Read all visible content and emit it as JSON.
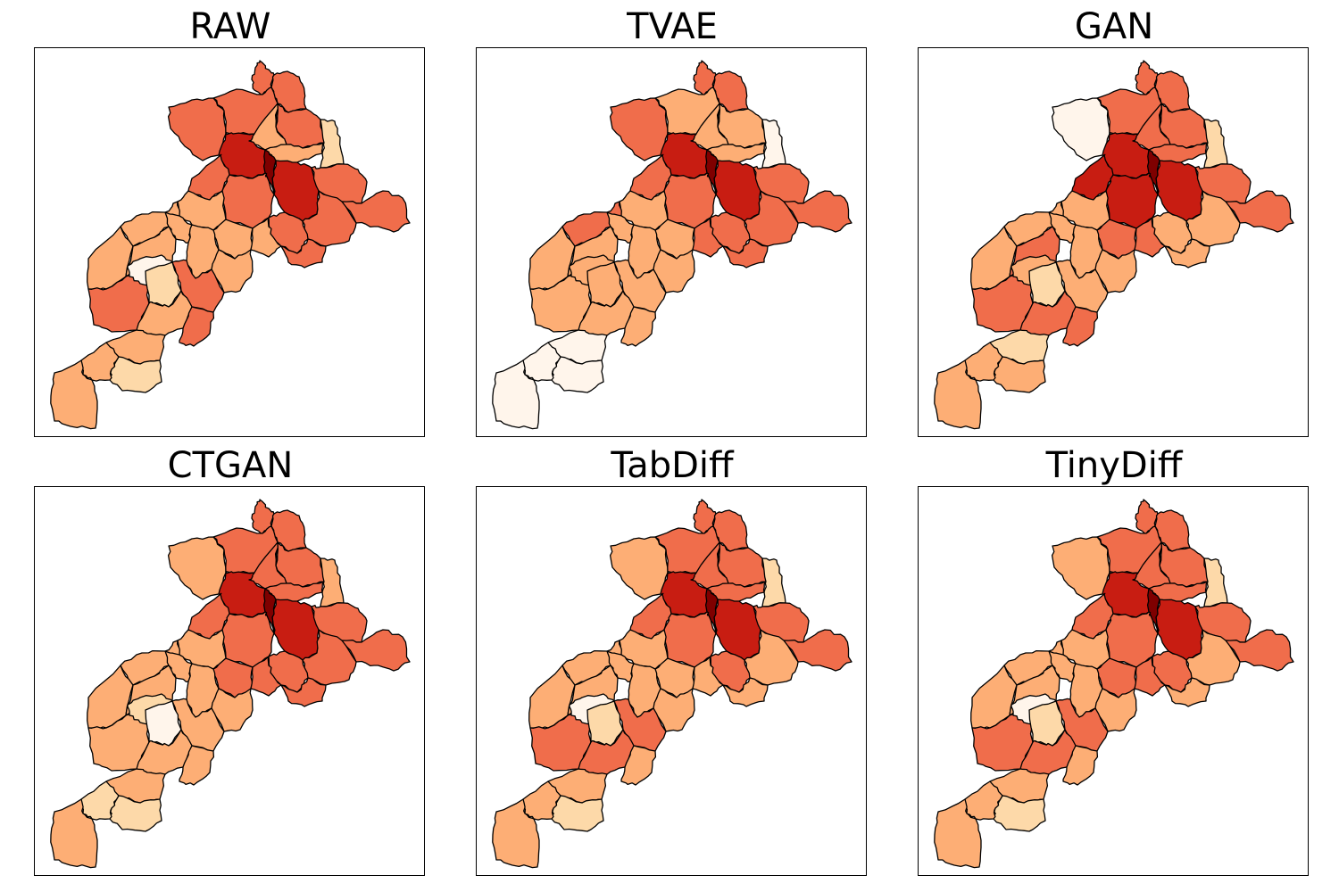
{
  "figure": {
    "panels": [
      {
        "title": "RAW",
        "colors": [
          3,
          3,
          3,
          3,
          3,
          2,
          2,
          1,
          4,
          4,
          5,
          3,
          3,
          3,
          3,
          3,
          3,
          2,
          2,
          2,
          3,
          2,
          2,
          2,
          2,
          3,
          2,
          2,
          3,
          0,
          1,
          2,
          3,
          2,
          1,
          2,
          2
        ]
      },
      {
        "title": "TVAE",
        "colors": [
          3,
          3,
          3,
          2,
          2,
          2,
          2,
          0,
          4,
          4,
          5,
          3,
          3,
          3,
          3,
          3,
          3,
          2,
          2,
          3,
          3,
          3,
          2,
          2,
          2,
          2,
          2,
          2,
          2,
          2,
          2,
          2,
          2,
          0,
          0,
          0,
          0
        ]
      },
      {
        "title": "GAN",
        "colors": [
          3,
          3,
          0,
          3,
          3,
          3,
          3,
          1,
          4,
          4,
          5,
          3,
          4,
          4,
          3,
          2,
          2,
          2,
          3,
          3,
          2,
          2,
          2,
          2,
          2,
          2,
          2,
          3,
          3,
          2,
          1,
          3,
          3,
          1,
          2,
          2,
          2
        ]
      },
      {
        "title": "CTGAN",
        "colors": [
          3,
          3,
          2,
          3,
          3,
          3,
          3,
          2,
          4,
          4,
          5,
          3,
          3,
          3,
          3,
          3,
          3,
          2,
          3,
          3,
          3,
          2,
          2,
          2,
          2,
          2,
          2,
          2,
          2,
          1,
          0,
          2,
          2,
          2,
          1,
          1,
          2
        ]
      },
      {
        "title": "TabDiff",
        "colors": [
          3,
          3,
          2,
          3,
          3,
          3,
          3,
          1,
          4,
          4,
          5,
          3,
          3,
          3,
          3,
          2,
          3,
          2,
          2,
          2,
          2,
          2,
          2,
          2,
          2,
          3,
          2,
          2,
          3,
          0,
          1,
          3,
          2,
          2,
          1,
          2,
          2
        ]
      },
      {
        "title": "TinyDiff",
        "colors": [
          3,
          3,
          2,
          3,
          3,
          3,
          3,
          1,
          4,
          4,
          5,
          3,
          3,
          3,
          3,
          2,
          3,
          2,
          3,
          3,
          2,
          2,
          2,
          2,
          2,
          3,
          2,
          2,
          3,
          0,
          1,
          3,
          2,
          2,
          1,
          2,
          2
        ]
      }
    ],
    "colormap": {
      "name": "OrRd",
      "classes": [
        "#fff5eb",
        "#fdd9a9",
        "#fdae75",
        "#f06d4b",
        "#c81d12",
        "#7f0000"
      ]
    }
  }
}
